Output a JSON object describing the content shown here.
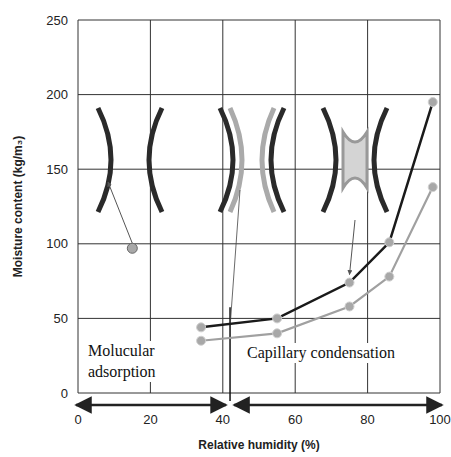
{
  "chart_data": {
    "type": "line",
    "x_label": "Relative humidity (%)",
    "y_label": "Moisture content (kg/m₃)",
    "x": [
      34,
      55,
      75,
      86,
      98
    ],
    "series": [
      {
        "color": "#1a1a1a",
        "marker": "circle",
        "values": [
          44,
          50,
          74,
          101,
          195
        ]
      },
      {
        "color": "#a0a0a0",
        "marker": "circle",
        "values": [
          35,
          40,
          58,
          78,
          138
        ]
      }
    ],
    "marker_point": {
      "x": 15,
      "y": 97
    },
    "boundary_rh": 42,
    "regions": [
      {
        "label": "Molucular adsorption"
      },
      {
        "label": "Capillary condensation"
      }
    ],
    "xlim": [
      0,
      100
    ],
    "ylim": [
      0,
      250
    ],
    "xticks": [
      0,
      20,
      40,
      60,
      80,
      100
    ],
    "yticks": [
      0,
      50,
      100,
      150,
      200,
      250
    ],
    "grid": true
  }
}
